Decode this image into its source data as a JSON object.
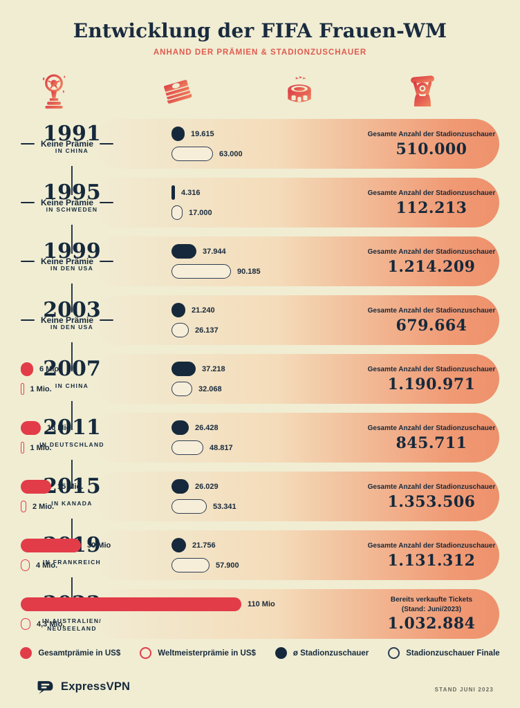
{
  "header": {
    "title": "Entwicklung der FIFA Frauen-WM",
    "subtitle": "ANHAND DER PRÄMIEN & STADIONZUSCHAUER",
    "icons": [
      "trophy-icon",
      "money-icon",
      "stadium-icon",
      "fan-icon"
    ]
  },
  "colors": {
    "background": "#f0edd3",
    "navy": "#16293c",
    "red": "#e23c49",
    "subtitle_red": "#e05a4e",
    "band_end_coral": "#ee916c",
    "outline_pill_fill": "#f7eeda"
  },
  "rows": [
    {
      "year": "1991",
      "location": "IN CHINA",
      "prize": {
        "none": "Keine Prämie"
      },
      "attendance": {
        "avg_label": "19.615",
        "avg_value": 19615,
        "final_label": "63.000",
        "final_value": 63000
      },
      "total": {
        "caption": "Gesamte Anzahl der Stadionzuschauer",
        "value": "510.000"
      }
    },
    {
      "year": "1995",
      "location": "IN SCHWEDEN",
      "prize": {
        "none": "Keine Prämie"
      },
      "attendance": {
        "avg_label": "4.316",
        "avg_value": 4316,
        "final_label": "17.000",
        "final_value": 17000
      },
      "total": {
        "caption": "Gesamte Anzahl der Stadionzuschauer",
        "value": "112.213"
      }
    },
    {
      "year": "1999",
      "location": "IN DEN USA",
      "prize": {
        "none": "Keine Prämie"
      },
      "attendance": {
        "avg_label": "37.944",
        "avg_value": 37944,
        "final_label": "90.185",
        "final_value": 90185
      },
      "total": {
        "caption": "Gesamte Anzahl der Stadionzuschauer",
        "value": "1.214.209"
      }
    },
    {
      "year": "2003",
      "location": "IN DEN USA",
      "prize": {
        "none": "Keine Prämie"
      },
      "attendance": {
        "avg_label": "21.240",
        "avg_value": 21240,
        "final_label": "26.137",
        "final_value": 26137
      },
      "total": {
        "caption": "Gesamte Anzahl der Stadionzuschauer",
        "value": "679.664"
      }
    },
    {
      "year": "2007",
      "location": "IN CHINA",
      "prize": {
        "total_label": "6 Mio.",
        "total_value": 6,
        "winner_label": "1 Mio.",
        "winner_value": 1
      },
      "attendance": {
        "avg_label": "37.218",
        "avg_value": 37218,
        "final_label": "32.068",
        "final_value": 32068
      },
      "total": {
        "caption": "Gesamte Anzahl der Stadionzuschauer",
        "value": "1.190.971"
      }
    },
    {
      "year": "2011",
      "location": "IN DEUTSCHLAND",
      "prize": {
        "total_label": "10 Mio.",
        "total_value": 10,
        "winner_label": "1 Mio.",
        "winner_value": 1
      },
      "attendance": {
        "avg_label": "26.428",
        "avg_value": 26428,
        "final_label": "48.817",
        "final_value": 48817
      },
      "total": {
        "caption": "Gesamte Anzahl der Stadionzuschauer",
        "value": "845.711"
      }
    },
    {
      "year": "2015",
      "location": "IN KANADA",
      "prize": {
        "total_label": "15 Mio.",
        "total_value": 15,
        "winner_label": "2 Mio.",
        "winner_value": 2
      },
      "attendance": {
        "avg_label": "26.029",
        "avg_value": 26029,
        "final_label": "53.341",
        "final_value": 53341
      },
      "total": {
        "caption": "Gesamte Anzahl der Stadionzuschauer",
        "value": "1.353.506"
      }
    },
    {
      "year": "2019",
      "location": "IN FRANKREICH",
      "prize": {
        "total_label": "30 Mio",
        "total_value": 30,
        "winner_label": "4 Mio.",
        "winner_value": 4
      },
      "attendance": {
        "avg_label": "21.756",
        "avg_value": 21756,
        "final_label": "57.900",
        "final_value": 57900
      },
      "total": {
        "caption": "Gesamte Anzahl der Stadionzuschauer",
        "value": "1.131.312"
      }
    },
    {
      "year": "2023",
      "location": "IN AUSTRALIEN/",
      "location2": "NEUSEELAND",
      "prize": {
        "total_label": "110 Mio",
        "total_value": 110,
        "winner_label": "4,3 Mio.",
        "winner_value": 4.3
      },
      "attendance": null,
      "total": {
        "caption": "Bereits verkaufte Tickets",
        "caption2": "(Stand: Juni/2023)",
        "value": "1.032.884"
      }
    }
  ],
  "legend": {
    "items": [
      {
        "label": "Gesamtprämie in US$",
        "swatch": "red-filled"
      },
      {
        "label": "Weltmeisterprämie in US$",
        "swatch": "red-outline"
      },
      {
        "label": "ø Stadionzuschauer",
        "swatch": "navy-filled"
      },
      {
        "label": "Stadionzuschauer Finale",
        "swatch": "navy-outline"
      }
    ]
  },
  "footer": {
    "brand": "ExpressVPN",
    "note": "STAND JUNI 2023"
  },
  "chart_data": {
    "type": "bar",
    "title": "Entwicklung der FIFA Frauen-WM",
    "subtitle": "ANHAND DER PRÄMIEN & STADIONZUSCHAUER",
    "categories": [
      "1991 in China",
      "1995 in Schweden",
      "1999 in den USA",
      "2003 in den USA",
      "2007 in China",
      "2011 in Deutschland",
      "2015 in Kanada",
      "2019 in Frankreich",
      "2023 in Australien/Neuseeland"
    ],
    "series": [
      {
        "name": "Gesamtprämie in US$ (Mio)",
        "values": [
          null,
          null,
          null,
          null,
          6,
          10,
          15,
          30,
          110
        ]
      },
      {
        "name": "Weltmeisterprämie in US$ (Mio)",
        "values": [
          null,
          null,
          null,
          null,
          1,
          1,
          2,
          4,
          4.3
        ]
      },
      {
        "name": "ø Stadionzuschauer",
        "values": [
          19615,
          4316,
          37944,
          21240,
          37218,
          26428,
          26029,
          21756,
          null
        ]
      },
      {
        "name": "Stadionzuschauer Finale",
        "values": [
          63000,
          17000,
          90185,
          26137,
          32068,
          48817,
          53341,
          57900,
          null
        ]
      },
      {
        "name": "Gesamte Anzahl der Stadionzuschauer",
        "values": [
          510000,
          112213,
          1214209,
          679664,
          1190971,
          845711,
          1353506,
          1131312,
          1032884
        ]
      }
    ],
    "annotations": [
      "Keine Prämie (1991, 1995, 1999, 2003)",
      "2023: Bereits verkaufte Tickets (Stand: Juni/2023)"
    ],
    "legend_position": "bottom",
    "grid": false
  }
}
